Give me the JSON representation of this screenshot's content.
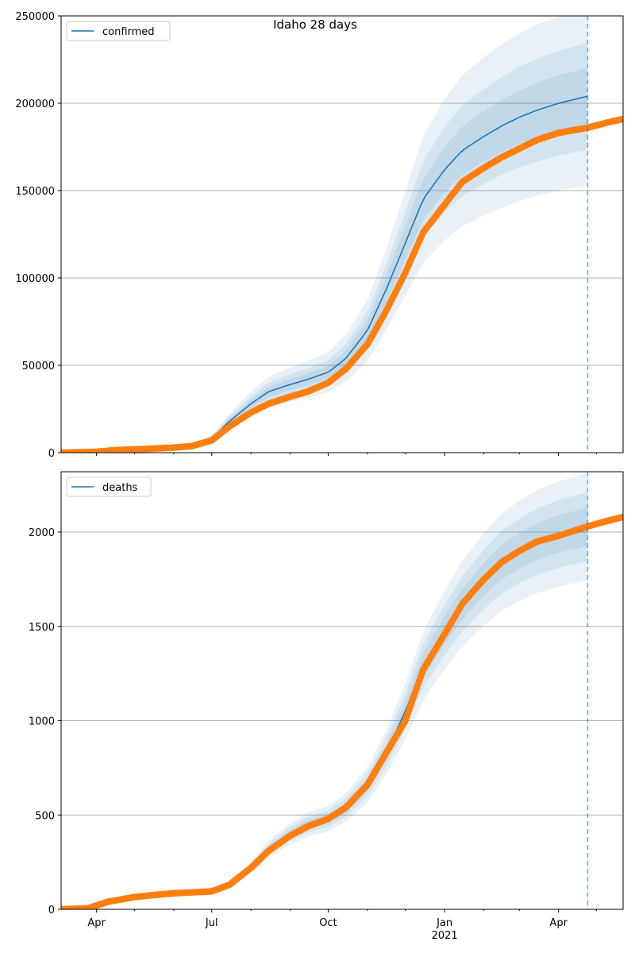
{
  "figure": {
    "title": "Idaho 28 days"
  },
  "colors": {
    "model_line": "#1f77b4",
    "band": "#1f77b4",
    "observed": "#ff7f0e",
    "grid": "#b0b0b0",
    "forecast_marker": "#1f77b4"
  },
  "x_axis": {
    "start": "2020-03-04",
    "end": "2021-05-22",
    "month_ticks": [
      "Apr",
      "Jul",
      "Oct",
      "Jan",
      "Apr"
    ],
    "year_label": "2021",
    "forecast_date": "2021-04-24"
  },
  "chart_data": [
    {
      "type": "line",
      "name": "confirmed",
      "legend": "confirmed",
      "ylim": [
        0,
        250000
      ],
      "yticks": [
        "0",
        "50000",
        "100000",
        "150000",
        "200000",
        "250000"
      ],
      "grid": "horizontal",
      "legend_position": "top-left",
      "model_points": [
        [
          "2020-03-04",
          0
        ],
        [
          "2020-04-01",
          500
        ],
        [
          "2020-05-01",
          1900
        ],
        [
          "2020-06-01",
          3000
        ],
        [
          "2020-06-15",
          4000
        ],
        [
          "2020-07-01",
          8000
        ],
        [
          "2020-07-15",
          18000
        ],
        [
          "2020-08-01",
          28000
        ],
        [
          "2020-08-15",
          35000
        ],
        [
          "2020-09-01",
          39000
        ],
        [
          "2020-09-15",
          42000
        ],
        [
          "2020-10-01",
          46000
        ],
        [
          "2020-10-15",
          54000
        ],
        [
          "2020-11-01",
          70000
        ],
        [
          "2020-11-15",
          92000
        ],
        [
          "2020-12-01",
          120000
        ],
        [
          "2020-12-15",
          145000
        ],
        [
          "2021-01-01",
          162000
        ],
        [
          "2021-01-15",
          173000
        ],
        [
          "2021-02-01",
          181000
        ],
        [
          "2021-02-15",
          187000
        ],
        [
          "2021-03-01",
          192000
        ],
        [
          "2021-03-15",
          196000
        ],
        [
          "2021-04-01",
          200000
        ],
        [
          "2021-04-24",
          204000
        ]
      ],
      "band_rel": [
        0.25,
        0.15,
        0.08
      ],
      "observed": [
        [
          "2020-03-04",
          0
        ],
        [
          "2020-04-01",
          500
        ],
        [
          "2020-04-15",
          1400
        ],
        [
          "2020-05-01",
          1900
        ],
        [
          "2020-05-15",
          2300
        ],
        [
          "2020-06-01",
          2900
        ],
        [
          "2020-06-15",
          3700
        ],
        [
          "2020-07-01",
          7000
        ],
        [
          "2020-07-15",
          15000
        ],
        [
          "2020-08-01",
          23000
        ],
        [
          "2020-08-15",
          28000
        ],
        [
          "2020-09-01",
          32000
        ],
        [
          "2020-09-15",
          35000
        ],
        [
          "2020-10-01",
          40000
        ],
        [
          "2020-10-15",
          48000
        ],
        [
          "2020-11-01",
          62000
        ],
        [
          "2020-11-15",
          80000
        ],
        [
          "2020-12-01",
          103000
        ],
        [
          "2020-12-15",
          126000
        ],
        [
          "2021-01-01",
          142000
        ],
        [
          "2021-01-15",
          155000
        ],
        [
          "2021-02-01",
          163000
        ],
        [
          "2021-02-15",
          169000
        ],
        [
          "2021-03-01",
          174000
        ],
        [
          "2021-03-15",
          179000
        ],
        [
          "2021-04-01",
          183000
        ],
        [
          "2021-04-24",
          186000
        ],
        [
          "2021-05-10",
          189000
        ],
        [
          "2021-05-22",
          191000
        ]
      ]
    },
    {
      "type": "line",
      "name": "deaths",
      "legend": "deaths",
      "ylim": [
        0,
        2320
      ],
      "yticks": [
        "0",
        "500",
        "1000",
        "1500",
        "2000"
      ],
      "ytick_values": [
        0,
        500,
        1000,
        1500,
        2000
      ],
      "grid": "horizontal",
      "legend_position": "top-left",
      "model_points": [
        [
          "2020-03-04",
          0
        ],
        [
          "2020-03-25",
          5
        ],
        [
          "2020-04-10",
          40
        ],
        [
          "2020-05-01",
          65
        ],
        [
          "2020-06-01",
          85
        ],
        [
          "2020-07-01",
          95
        ],
        [
          "2020-07-15",
          130
        ],
        [
          "2020-08-01",
          220
        ],
        [
          "2020-08-15",
          320
        ],
        [
          "2020-09-01",
          400
        ],
        [
          "2020-09-15",
          450
        ],
        [
          "2020-10-01",
          480
        ],
        [
          "2020-10-15",
          540
        ],
        [
          "2020-11-01",
          660
        ],
        [
          "2020-11-15",
          820
        ],
        [
          "2020-12-01",
          1050
        ],
        [
          "2020-12-15",
          1290
        ],
        [
          "2021-01-01",
          1480
        ],
        [
          "2021-01-15",
          1620
        ],
        [
          "2021-02-01",
          1750
        ],
        [
          "2021-02-15",
          1840
        ],
        [
          "2021-03-01",
          1900
        ],
        [
          "2021-03-15",
          1950
        ],
        [
          "2021-04-01",
          1990
        ],
        [
          "2021-04-24",
          2030
        ]
      ],
      "band_rel": [
        0.14,
        0.09,
        0.05
      ],
      "observed": [
        [
          "2020-03-04",
          0
        ],
        [
          "2020-03-25",
          5
        ],
        [
          "2020-04-10",
          40
        ],
        [
          "2020-05-01",
          65
        ],
        [
          "2020-05-15",
          75
        ],
        [
          "2020-06-01",
          85
        ],
        [
          "2020-07-01",
          95
        ],
        [
          "2020-07-15",
          130
        ],
        [
          "2020-08-01",
          220
        ],
        [
          "2020-08-15",
          310
        ],
        [
          "2020-09-01",
          390
        ],
        [
          "2020-09-15",
          440
        ],
        [
          "2020-10-01",
          480
        ],
        [
          "2020-10-15",
          540
        ],
        [
          "2020-11-01",
          660
        ],
        [
          "2020-11-15",
          820
        ],
        [
          "2020-12-01",
          1000
        ],
        [
          "2020-12-15",
          1270
        ],
        [
          "2021-01-01",
          1460
        ],
        [
          "2021-01-15",
          1620
        ],
        [
          "2021-02-01",
          1750
        ],
        [
          "2021-02-15",
          1840
        ],
        [
          "2021-03-01",
          1900
        ],
        [
          "2021-03-15",
          1950
        ],
        [
          "2021-04-01",
          1980
        ],
        [
          "2021-04-24",
          2030
        ],
        [
          "2021-05-10",
          2060
        ],
        [
          "2021-05-22",
          2080
        ]
      ]
    }
  ]
}
